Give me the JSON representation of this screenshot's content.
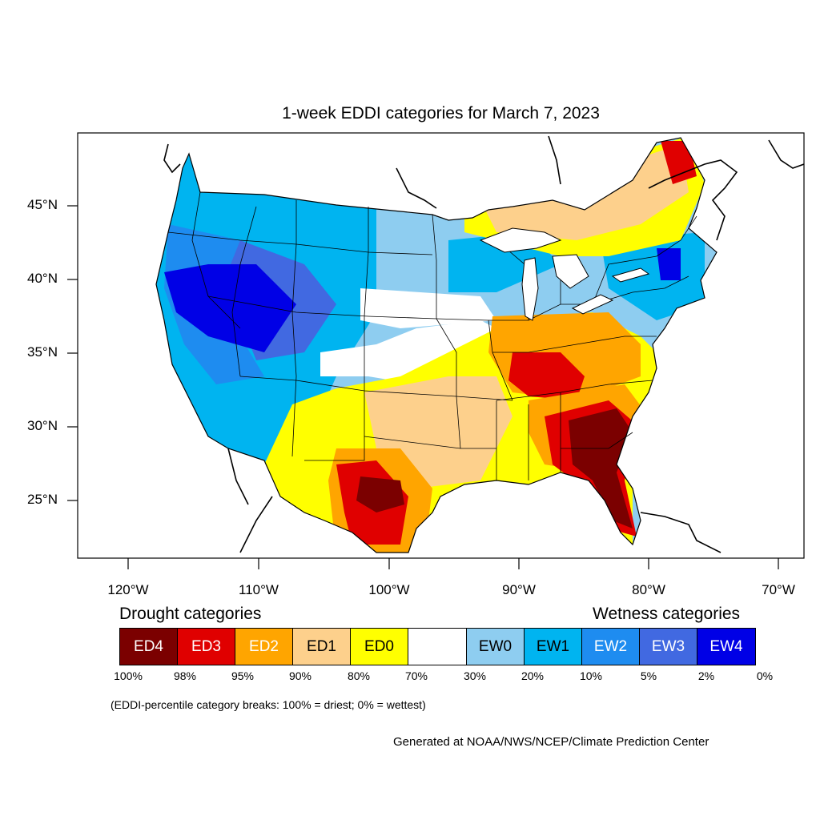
{
  "title": "1-week EDDI categories for March 7, 2023",
  "lat_labels": [
    "45°N",
    "40°N",
    "35°N",
    "30°N",
    "25°N"
  ],
  "lon_labels": [
    "120°W",
    "110°W",
    "100°W",
    "90°W",
    "80°W",
    "70°W"
  ],
  "drought_header": "Drought categories",
  "wetness_header": "Wetness categories",
  "categories": [
    {
      "label": "ED4",
      "color": "#7b0000",
      "text_color": "#ffffff"
    },
    {
      "label": "ED3",
      "color": "#e00000",
      "text_color": "#ffffff"
    },
    {
      "label": "ED2",
      "color": "#ffa500",
      "text_color": "#ffffff"
    },
    {
      "label": "ED1",
      "color": "#fdd08c",
      "text_color": "#000000"
    },
    {
      "label": "ED0",
      "color": "#ffff00",
      "text_color": "#000000"
    },
    {
      "label": "",
      "color": "#ffffff",
      "text_color": "#000000"
    },
    {
      "label": "EW0",
      "color": "#8ecdf0",
      "text_color": "#000000"
    },
    {
      "label": "EW1",
      "color": "#00b4f0",
      "text_color": "#000000"
    },
    {
      "label": "EW2",
      "color": "#1e8cf0",
      "text_color": "#ffffff"
    },
    {
      "label": "EW3",
      "color": "#4169e1",
      "text_color": "#ffffff"
    },
    {
      "label": "EW4",
      "color": "#0000e6",
      "text_color": "#ffffff"
    }
  ],
  "percent_labels": [
    "100%",
    "98%",
    "95%",
    "90%",
    "80%",
    "70%",
    "30%",
    "20%",
    "10%",
    "5%",
    "2%",
    "0%"
  ],
  "note": "(EDDI-percentile category breaks: 100% = driest; 0% = wettest)",
  "credit": "Generated at NOAA/NWS/NCEP/Climate Prediction Center"
}
